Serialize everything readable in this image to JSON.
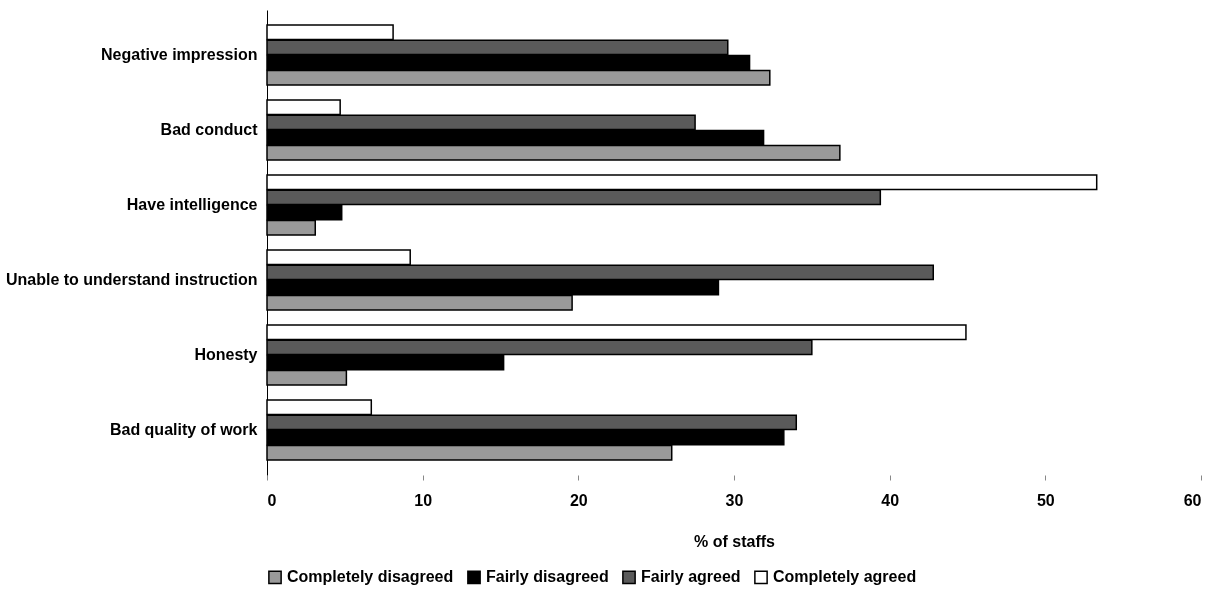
{
  "chart_data": {
    "type": "bar",
    "orientation": "horizontal",
    "xlabel": "% of staffs",
    "categories": [
      "Negative impression",
      "Bad conduct",
      "Have intelligence",
      "Unable to understand instruction",
      "Honesty",
      "Bad quality of work"
    ],
    "series": [
      {
        "name": "Completely disagreed",
        "color": "#9a9a9a",
        "values": [
          32.3,
          36.8,
          3.1,
          19.6,
          5.1,
          26.0
        ]
      },
      {
        "name": "Fairly disagreed",
        "color": "#000000",
        "values": [
          31.0,
          31.9,
          4.8,
          29.0,
          15.2,
          33.2
        ]
      },
      {
        "name": "Fairly agreed",
        "color": "#5a5a5a",
        "values": [
          29.6,
          27.5,
          39.4,
          42.8,
          35.0,
          34.0
        ]
      },
      {
        "name": "Completely agreed",
        "color": "#ffffff",
        "values": [
          8.1,
          4.7,
          53.3,
          9.2,
          44.9,
          6.7
        ]
      }
    ],
    "xlim": [
      0,
      60
    ],
    "xticks": [
      0,
      10,
      20,
      30,
      40,
      50,
      60
    ],
    "grid": false,
    "legend": "bottom"
  }
}
